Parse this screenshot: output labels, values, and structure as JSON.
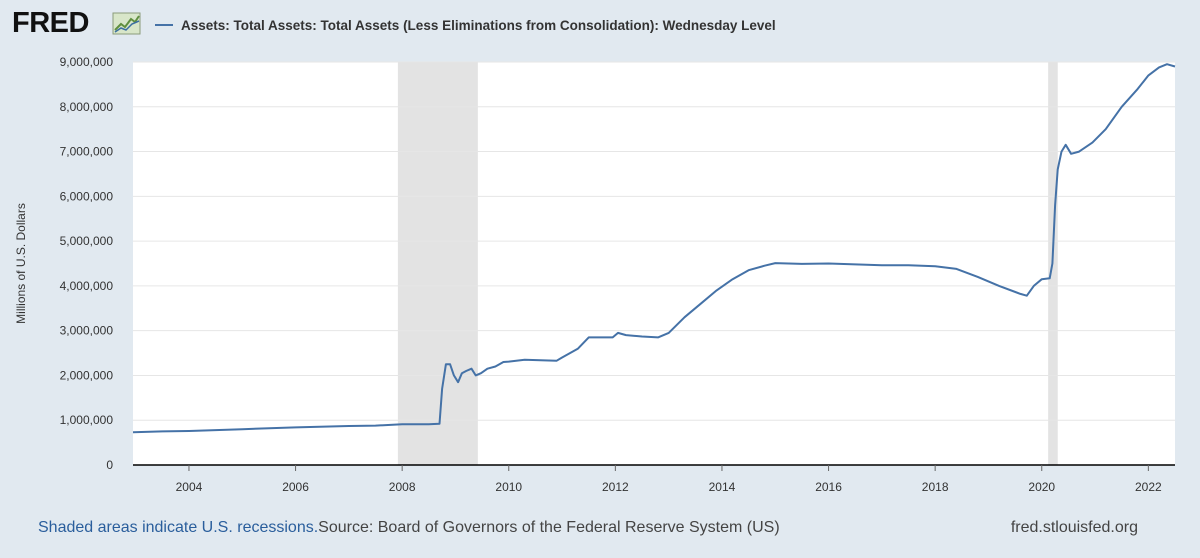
{
  "header": {
    "logo": "FRED",
    "logo_icon": "line-chart-icon",
    "series_title": "Assets: Total Assets: Total Assets (Less Eliminations from Consolidation): Wednesday Level"
  },
  "footer": {
    "shaded_note": "Shaded areas indicate U.S. recessions.",
    "source": "Source: Board of Governors of the Federal Reserve System (US)",
    "website": "fred.stlouisfed.org"
  },
  "colors": {
    "line": "#4572a7",
    "recession": "#e3e3e3",
    "background": "#e1e9f0",
    "plot_background": "#ffffff"
  },
  "chart_data": {
    "type": "line",
    "title": "",
    "xlabel": "",
    "ylabel": "Millions of U.S. Dollars",
    "xlim": [
      2002.95,
      2022.5
    ],
    "ylim": [
      0,
      9000000
    ],
    "yticks": [
      0,
      1000000,
      2000000,
      3000000,
      4000000,
      5000000,
      6000000,
      7000000,
      8000000,
      9000000
    ],
    "ytick_labels": [
      "0",
      "1,000,000",
      "2,000,000",
      "3,000,000",
      "4,000,000",
      "5,000,000",
      "6,000,000",
      "7,000,000",
      "8,000,000",
      "9,000,000"
    ],
    "xticks": [
      2004,
      2006,
      2008,
      2010,
      2012,
      2014,
      2016,
      2018,
      2020,
      2022
    ],
    "xtick_labels": [
      "2004",
      "2006",
      "2008",
      "2010",
      "2012",
      "2014",
      "2016",
      "2018",
      "2020",
      "2022"
    ],
    "grid": "horizontal",
    "recessions": [
      [
        2007.92,
        2009.42
      ],
      [
        2020.12,
        2020.3
      ]
    ],
    "series": [
      {
        "x": [
          2002.95,
          2003.5,
          2004.0,
          2005.0,
          2006.0,
          2007.0,
          2007.5,
          2008.0,
          2008.5,
          2008.7,
          2008.75,
          2008.82,
          2008.9,
          2008.97,
          2009.05,
          2009.12,
          2009.2,
          2009.3,
          2009.38,
          2009.48,
          2009.6,
          2009.75,
          2009.9,
          2010.0,
          2010.3,
          2010.6,
          2010.9,
          2011.0,
          2011.3,
          2011.5,
          2011.8,
          2011.95,
          2012.05,
          2012.2,
          2012.5,
          2012.8,
          2013.0,
          2013.3,
          2013.6,
          2013.9,
          2014.2,
          2014.5,
          2014.8,
          2015.0,
          2015.5,
          2016.0,
          2016.5,
          2017.0,
          2017.5,
          2018.0,
          2018.4,
          2018.8,
          2019.2,
          2019.6,
          2019.72,
          2019.85,
          2020.0,
          2020.15,
          2020.2,
          2020.25,
          2020.3,
          2020.37,
          2020.45,
          2020.55,
          2020.7,
          2020.95,
          2021.2,
          2021.5,
          2021.8,
          2022.0,
          2022.2,
          2022.35,
          2022.5
        ],
        "y": [
          730000,
          750000,
          760000,
          800000,
          840000,
          870000,
          880000,
          910000,
          910000,
          920000,
          1700000,
          2250000,
          2250000,
          2000000,
          1850000,
          2050000,
          2100000,
          2150000,
          2000000,
          2050000,
          2150000,
          2200000,
          2300000,
          2310000,
          2350000,
          2340000,
          2330000,
          2400000,
          2600000,
          2850000,
          2850000,
          2850000,
          2950000,
          2900000,
          2870000,
          2850000,
          2950000,
          3300000,
          3600000,
          3900000,
          4150000,
          4350000,
          4450000,
          4510000,
          4490000,
          4500000,
          4480000,
          4460000,
          4460000,
          4440000,
          4380000,
          4200000,
          4000000,
          3820000,
          3780000,
          4000000,
          4150000,
          4170000,
          4500000,
          5800000,
          6600000,
          7000000,
          7150000,
          6950000,
          7000000,
          7200000,
          7500000,
          8000000,
          8400000,
          8700000,
          8880000,
          8950000,
          8900000
        ]
      }
    ]
  }
}
